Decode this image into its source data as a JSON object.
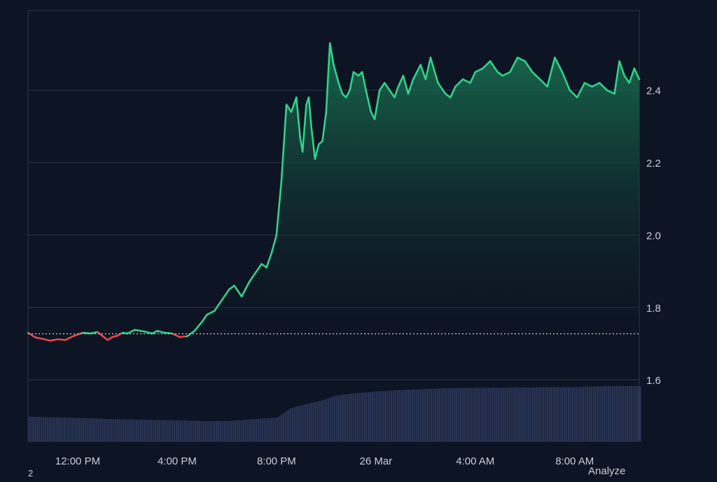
{
  "colors": {
    "background": "#0d1423",
    "grid": "#2e3646",
    "up_line": "#2fd28a",
    "down_line": "#e5484d",
    "area_top": "#1a7a55",
    "area_bottom": "#0d1423",
    "volume": "#2a3556",
    "reference_line": "#c9ced8",
    "axis_text": "#c9ced8"
  },
  "footer": {
    "analyze_label": "Analyze",
    "corner_mark": "2"
  },
  "chart_data": {
    "type": "area",
    "title": "",
    "xlabel": "",
    "ylabel": "",
    "ylim": [
      1.43,
      2.62
    ],
    "x_range_hours": [
      -2,
      22.6
    ],
    "reference_value": 1.727,
    "grid": true,
    "y_ticks": [
      1.6,
      1.8,
      2.0,
      2.2,
      2.4
    ],
    "y_tick_labels": [
      "1.6",
      "1.8",
      "2.0",
      "2.2",
      "2.4"
    ],
    "x_ticks": [
      0,
      4,
      8,
      12,
      16,
      20
    ],
    "x_tick_labels": [
      "12:00 PM",
      "4:00 PM",
      "8:00 PM",
      "26 Mar",
      "4:00 AM",
      "8:00 AM"
    ],
    "series": [
      {
        "x": [
          -2.0,
          -1.7,
          -1.4,
          -1.1,
          -0.8,
          -0.5,
          -0.2,
          0.2,
          0.5,
          0.8,
          1.2,
          1.4,
          1.6,
          1.8,
          2.0,
          2.3,
          2.7,
          3.0,
          3.2,
          3.5,
          3.8,
          4.1,
          4.4,
          4.7,
          5.0,
          5.2,
          5.5,
          5.8,
          6.1,
          6.3,
          6.6,
          6.9,
          7.2,
          7.4,
          7.6,
          7.8,
          8.0,
          8.2,
          8.4,
          8.6,
          8.8,
          8.95,
          9.05,
          9.2,
          9.3,
          9.4,
          9.55,
          9.7,
          9.85,
          10.0,
          10.15,
          10.3,
          10.5,
          10.65,
          10.8,
          10.95,
          11.1,
          11.3,
          11.45,
          11.6,
          11.8,
          11.95,
          12.15,
          12.35,
          12.55,
          12.75,
          12.9,
          13.1,
          13.3,
          13.5,
          13.8,
          14.0,
          14.2,
          14.5,
          14.8,
          15.0,
          15.2,
          15.5,
          15.8,
          16.0,
          16.3,
          16.6,
          16.9,
          17.1,
          17.4,
          17.7,
          18.0,
          18.3,
          18.6,
          18.9,
          19.2,
          19.5,
          19.8,
          20.1,
          20.4,
          20.7,
          21.0,
          21.3,
          21.6,
          21.8,
          22.0,
          22.2,
          22.4,
          22.6
        ],
        "values": [
          1.73,
          1.717,
          1.713,
          1.708,
          1.712,
          1.71,
          1.72,
          1.73,
          1.728,
          1.732,
          1.71,
          1.718,
          1.722,
          1.73,
          1.728,
          1.738,
          1.733,
          1.728,
          1.735,
          1.73,
          1.728,
          1.718,
          1.72,
          1.735,
          1.76,
          1.78,
          1.79,
          1.82,
          1.85,
          1.86,
          1.83,
          1.87,
          1.9,
          1.92,
          1.91,
          1.95,
          2.0,
          2.15,
          2.36,
          2.34,
          2.38,
          2.27,
          2.23,
          2.36,
          2.38,
          2.3,
          2.21,
          2.25,
          2.26,
          2.34,
          2.53,
          2.47,
          2.42,
          2.39,
          2.38,
          2.4,
          2.45,
          2.44,
          2.45,
          2.4,
          2.34,
          2.32,
          2.4,
          2.42,
          2.4,
          2.38,
          2.41,
          2.44,
          2.39,
          2.43,
          2.47,
          2.43,
          2.49,
          2.42,
          2.39,
          2.38,
          2.41,
          2.43,
          2.42,
          2.45,
          2.46,
          2.48,
          2.45,
          2.44,
          2.45,
          2.49,
          2.48,
          2.45,
          2.43,
          2.41,
          2.49,
          2.45,
          2.4,
          2.38,
          2.42,
          2.41,
          2.42,
          2.4,
          2.39,
          2.48,
          2.44,
          2.42,
          2.46,
          2.43
        ]
      }
    ],
    "volume": {
      "x": [
        -2.0,
        0.0,
        1.0,
        4.0,
        5.0,
        6.0,
        7.0,
        8.0,
        8.3,
        8.5,
        8.7,
        9.0,
        9.3,
        9.6,
        9.9,
        10.3,
        10.7,
        11.0,
        11.5,
        12.0,
        13.0,
        14.0,
        15.0,
        16.0,
        18.0,
        20.0,
        21.0,
        22.0,
        22.6
      ],
      "values": [
        1.498,
        1.495,
        1.492,
        1.488,
        1.486,
        1.486,
        1.491,
        1.496,
        1.51,
        1.52,
        1.525,
        1.53,
        1.535,
        1.54,
        1.545,
        1.555,
        1.56,
        1.562,
        1.565,
        1.568,
        1.572,
        1.575,
        1.577,
        1.578,
        1.579,
        1.58,
        1.582,
        1.583,
        1.583
      ]
    }
  }
}
